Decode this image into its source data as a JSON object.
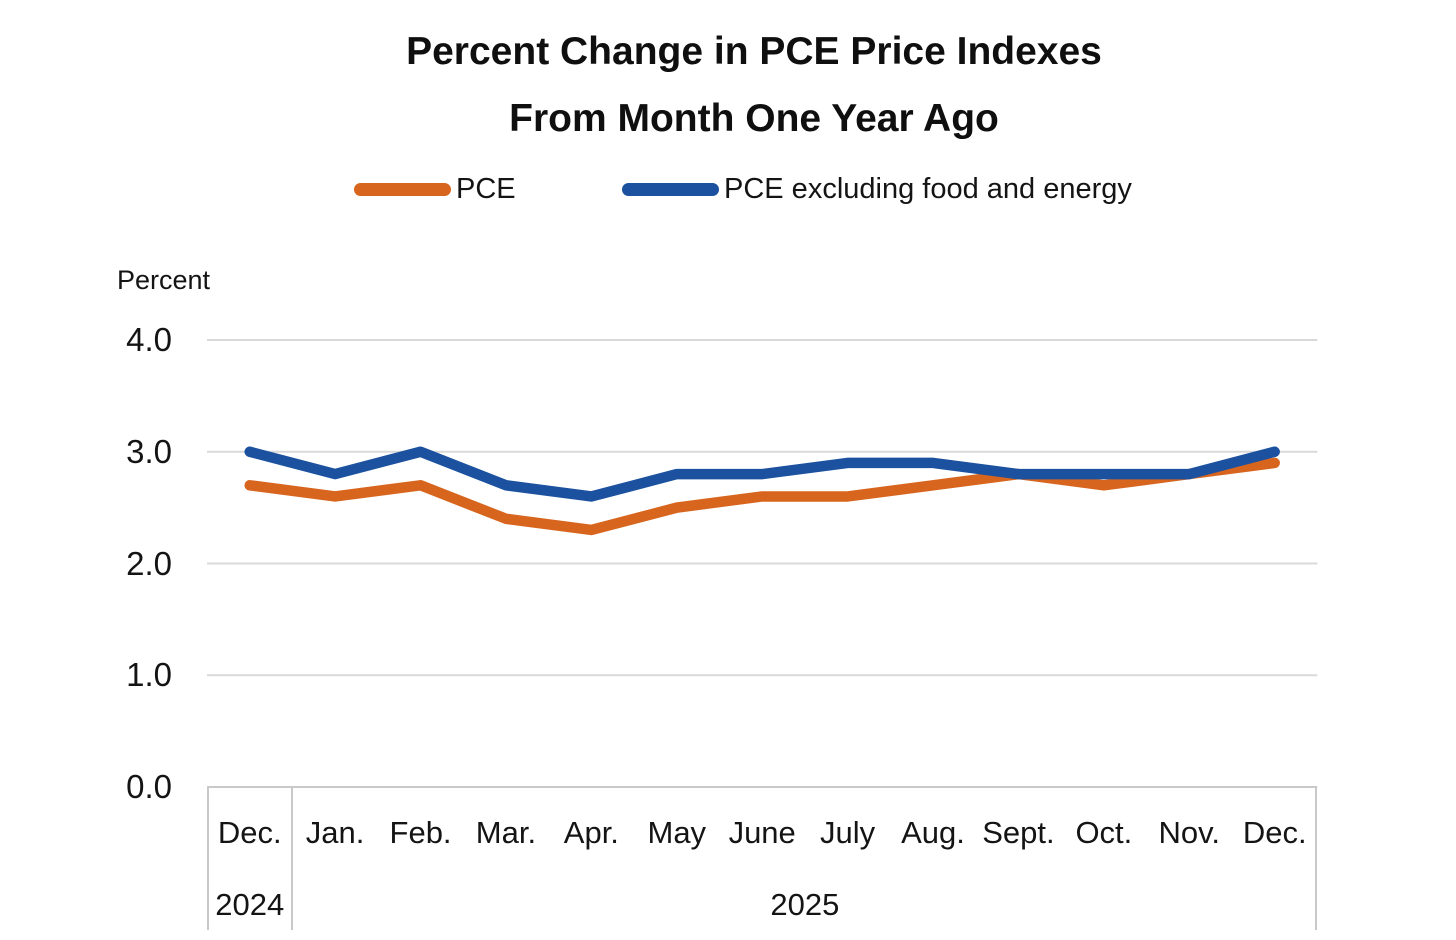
{
  "chart_data": {
    "type": "line",
    "title_lines": [
      "Percent Change in PCE Price Indexes",
      "From Month One Year Ago"
    ],
    "ylabel": "Percent",
    "ylim": [
      0.0,
      4.0
    ],
    "yticks": [
      "4.0",
      "3.0",
      "2.0",
      "1.0",
      "0.0"
    ],
    "grid": true,
    "legend_position": "top",
    "categories": [
      "Dec.",
      "Jan.",
      "Feb.",
      "Mar.",
      "Apr.",
      "May",
      "June",
      "July",
      "Aug.",
      "Sept.",
      "Oct.",
      "Nov.",
      "Dec."
    ],
    "year_groups": [
      {
        "label": "2024",
        "cols": 1
      },
      {
        "label": "2025",
        "cols": 12
      }
    ],
    "series": [
      {
        "name": "PCE",
        "color": "#D7651D",
        "values": [
          2.7,
          2.6,
          2.7,
          2.4,
          2.3,
          2.5,
          2.6,
          2.6,
          2.7,
          2.8,
          2.7,
          2.8,
          2.9
        ]
      },
      {
        "name": "PCE excluding food and energy",
        "color": "#1B519F",
        "values": [
          3.0,
          2.8,
          3.0,
          2.7,
          2.6,
          2.8,
          2.8,
          2.9,
          2.9,
          2.8,
          2.8,
          2.8,
          3.0
        ]
      }
    ],
    "colors": {
      "gridline": "#D9D9D9",
      "axis_box_border": "#C9C9C9",
      "text": "#141414"
    }
  }
}
